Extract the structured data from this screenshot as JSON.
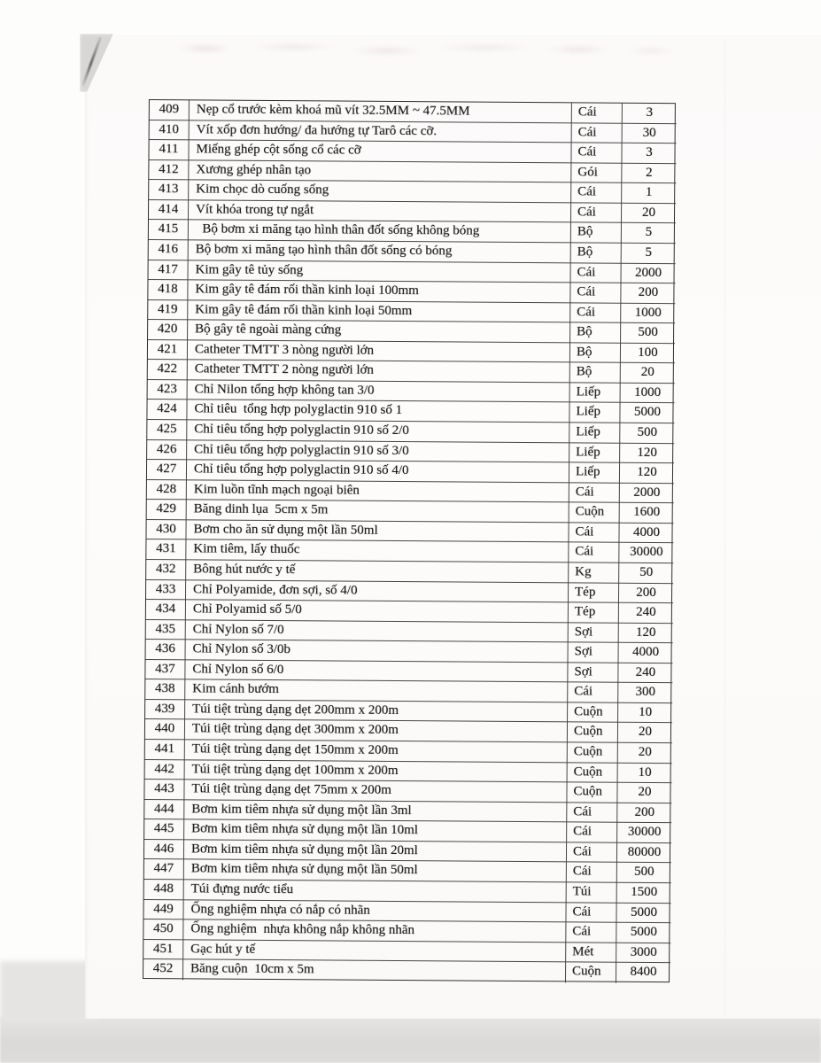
{
  "table": {
    "rows": [
      {
        "no": "409",
        "description": "Nẹp cổ trước kèm khoá mũ vít 32.5MM ~ 47.5MM",
        "unit": "Cái",
        "quantity": "3"
      },
      {
        "no": "410",
        "description": "Vít xốp đơn hướng/ đa hướng tự Tarô các cỡ.",
        "unit": "Cái",
        "quantity": "30"
      },
      {
        "no": "411",
        "description": "Miếng ghép cột sống cổ các cỡ",
        "unit": "Cái",
        "quantity": "3"
      },
      {
        "no": "412",
        "description": "Xương ghép nhân tạo",
        "unit": "Gói",
        "quantity": "2"
      },
      {
        "no": "413",
        "description": "Kim chọc dò cuống sống",
        "unit": "Cái",
        "quantity": "1"
      },
      {
        "no": "414",
        "description": "Vít khóa trong tự ngắt",
        "unit": "Cái",
        "quantity": "20"
      },
      {
        "no": "415",
        "description": "  Bộ bơm xi măng tạo hình thân đốt sống không bóng",
        "unit": "Bộ",
        "quantity": "5"
      },
      {
        "no": "416",
        "description": "Bộ bơm xi măng tạo hình thân đốt sống có bóng",
        "unit": "Bộ",
        "quantity": "5"
      },
      {
        "no": "417",
        "description": "Kim gây tê tủy sống",
        "unit": "Cái",
        "quantity": "2000"
      },
      {
        "no": "418",
        "description": "Kim gây tê đám rối thần kinh loại 100mm",
        "unit": "Cái",
        "quantity": "200"
      },
      {
        "no": "419",
        "description": "Kim gây tê đám rối thần kinh loại 50mm",
        "unit": "Cái",
        "quantity": "1000"
      },
      {
        "no": "420",
        "description": "Bộ gây tê ngoài màng cứng",
        "unit": "Bộ",
        "quantity": "500"
      },
      {
        "no": "421",
        "description": "Catheter TMTT 3 nòng người lớn",
        "unit": "Bộ",
        "quantity": "100"
      },
      {
        "no": "422",
        "description": "Catheter TMTT 2 nòng người lớn",
        "unit": "Bộ",
        "quantity": "20"
      },
      {
        "no": "423",
        "description": "Chỉ Nilon tổng hợp không tan 3/0",
        "unit": "Liếp",
        "quantity": "1000"
      },
      {
        "no": "424",
        "description": "Chỉ tiêu  tổng hợp polyglactin 910 số 1",
        "unit": "Liếp",
        "quantity": "5000"
      },
      {
        "no": "425",
        "description": "Chỉ tiêu tổng hợp polyglactin 910 số 2/0",
        "unit": "Liếp",
        "quantity": "500"
      },
      {
        "no": "426",
        "description": "Chỉ tiêu tổng hợp polyglactin 910 số 3/0",
        "unit": "Liếp",
        "quantity": "120"
      },
      {
        "no": "427",
        "description": "Chỉ tiêu tổng hợp polyglactin 910 số 4/0",
        "unit": "Liếp",
        "quantity": "120"
      },
      {
        "no": "428",
        "description": "Kim luồn tĩnh mạch ngoại biên",
        "unit": "Cái",
        "quantity": "2000"
      },
      {
        "no": "429",
        "description": "Băng dinh lụa  5cm x 5m",
        "unit": "Cuộn",
        "quantity": "1600"
      },
      {
        "no": "430",
        "description": "Bơm cho ăn sử dụng một lần 50ml",
        "unit": "Cái",
        "quantity": "4000"
      },
      {
        "no": "431",
        "description": "Kim tiêm, lấy thuốc",
        "unit": "Cái",
        "quantity": "30000"
      },
      {
        "no": "432",
        "description": "Bông hút nước y tế",
        "unit": "Kg",
        "quantity": "50"
      },
      {
        "no": "433",
        "description": "Chỉ Polyamide, đơn sợi, số 4/0",
        "unit": "Tép",
        "quantity": "200"
      },
      {
        "no": "434",
        "description": "Chỉ Polyamid số 5/0",
        "unit": "Tép",
        "quantity": "240"
      },
      {
        "no": "435",
        "description": "Chỉ Nylon số 7/0",
        "unit": "Sợi",
        "quantity": "120"
      },
      {
        "no": "436",
        "description": "Chỉ Nylon số 3/0b",
        "unit": "Sợi",
        "quantity": "4000"
      },
      {
        "no": "437",
        "description": "Chỉ Nylon số 6/0",
        "unit": "Sợi",
        "quantity": "240"
      },
      {
        "no": "438",
        "description": "Kim cánh bướm",
        "unit": "Cái",
        "quantity": "300"
      },
      {
        "no": "439",
        "description": "Túi tiệt trùng dạng dẹt 200mm x 200m",
        "unit": "Cuộn",
        "quantity": "10"
      },
      {
        "no": "440",
        "description": "Túi tiệt trùng dạng dẹt 300mm x 200m",
        "unit": "Cuộn",
        "quantity": "20"
      },
      {
        "no": "441",
        "description": "Túi tiệt trùng dạng dẹt 150mm x 200m",
        "unit": "Cuộn",
        "quantity": "20"
      },
      {
        "no": "442",
        "description": "Túi tiệt trùng dạng dẹt 100mm x 200m",
        "unit": "Cuộn",
        "quantity": "10"
      },
      {
        "no": "443",
        "description": "Túi tiệt trùng dạng dẹt 75mm x 200m",
        "unit": "Cuộn",
        "quantity": "20"
      },
      {
        "no": "444",
        "description": "Bơm kim tiêm nhựa sử dụng một lần 3ml",
        "unit": "Cái",
        "quantity": "200"
      },
      {
        "no": "445",
        "description": "Bơm kim tiêm nhựa sử dụng một lần 10ml",
        "unit": "Cái",
        "quantity": "30000"
      },
      {
        "no": "446",
        "description": "Bơm kim tiêm nhựa sử dụng một lần 20ml",
        "unit": "Cái",
        "quantity": "80000"
      },
      {
        "no": "447",
        "description": "Bơm kim tiêm nhựa sử dụng một lần 50ml",
        "unit": "Cái",
        "quantity": "500"
      },
      {
        "no": "448",
        "description": "Túi đựng nước tiểu",
        "unit": "Túi",
        "quantity": "1500"
      },
      {
        "no": "449",
        "description": "Ống nghiệm nhựa có nắp có nhãn",
        "unit": "Cái",
        "quantity": "5000"
      },
      {
        "no": "450",
        "description": "Ống nghiệm  nhựa không nắp không nhãn",
        "unit": "Cái",
        "quantity": "5000"
      },
      {
        "no": "451",
        "description": "Gạc hút y tế",
        "unit": "Mét",
        "quantity": "3000"
      },
      {
        "no": "452",
        "description": "Băng cuộn  10cm x 5m",
        "unit": "Cuộn",
        "quantity": "8400"
      }
    ]
  }
}
